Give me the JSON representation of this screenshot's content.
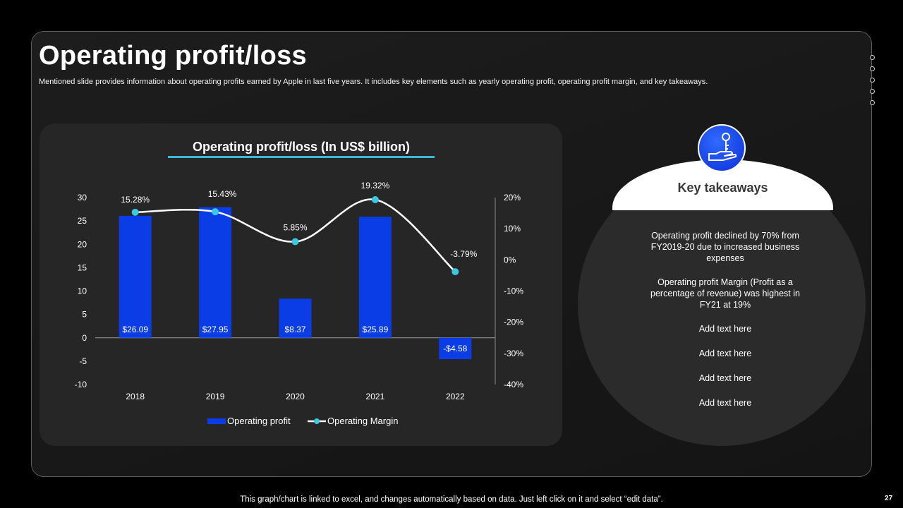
{
  "slide": {
    "title": "Operating profit/loss",
    "subtitle": "Mentioned slide provides information about operating profits earned by Apple in last five years. It includes key elements such as yearly operating profit, operating profit margin, and key takeaways.",
    "footer": "This graph/chart is linked to excel,  and changes automatically based on data. Just left click on it and select “edit data”.",
    "page_number": "27"
  },
  "colors": {
    "bar": "#0a3de6",
    "line": "#ffffff",
    "marker": "#3cc8e0",
    "accent": "#3ab8d8"
  },
  "chart_data": {
    "type": "bar",
    "title": "Operating profit/loss (In US$ billion)",
    "categories": [
      "2018",
      "2019",
      "2020",
      "2021",
      "2022"
    ],
    "series": [
      {
        "name": "Operating profit",
        "type": "bar",
        "axis": "left",
        "values": [
          26.09,
          27.95,
          8.37,
          25.89,
          -4.58
        ],
        "labels": [
          "$26.09",
          "$27.95",
          "$8.37",
          "$25.89",
          "-$4.58"
        ]
      },
      {
        "name": "Operating Margin",
        "type": "line",
        "axis": "right",
        "values": [
          15.28,
          15.43,
          5.85,
          19.32,
          -3.79
        ],
        "labels": [
          "15.28%",
          "15.43%",
          "5.85%",
          "19.32%",
          "-3.79%"
        ]
      }
    ],
    "left_axis": {
      "range": [
        -10,
        30
      ],
      "ticks": [
        "30",
        "25",
        "20",
        "15",
        "10",
        "5",
        "0",
        "-5",
        "-10"
      ]
    },
    "right_axis": {
      "range": [
        -40,
        20
      ],
      "ticks": [
        "20%",
        "10%",
        "0%",
        "-10%",
        "-20%",
        "-30%",
        "-40%"
      ]
    },
    "legend": [
      "Operating profit",
      "Operating Margin"
    ],
    "legend_position": "bottom"
  },
  "takeaways": {
    "title": "Key takeaways",
    "items": [
      "Operating profit declined by 70% from FY2019-20 due to increased business expenses",
      "Operating profit Margin (Profit as a percentage of revenue) was highest in FY21 at 19%",
      "Add text here",
      "Add text here",
      "Add text here",
      "Add text here"
    ]
  }
}
